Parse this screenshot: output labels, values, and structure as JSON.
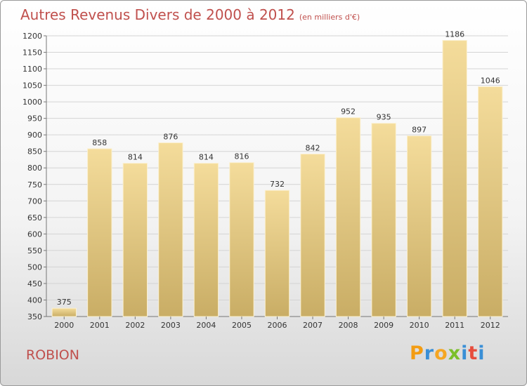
{
  "title": "Autres Revenus Divers de 2000 à 2012",
  "unit": "(en milliers d'€)",
  "place": "ROBION",
  "logo": {
    "letters": [
      "P",
      "r",
      "o",
      "x",
      "i",
      "t",
      "i"
    ],
    "colors": [
      "#f39c12",
      "#3a8fd6",
      "#f5a623",
      "#7bbf2a",
      "#3a8fd6",
      "#e74c3c",
      "#3a8fd6"
    ]
  },
  "colors": {
    "title": "#c0504d",
    "bar_light": "#f4dc9b",
    "bar_dark": "#c9ad65"
  },
  "chart_data": {
    "type": "bar",
    "categories": [
      "2000",
      "2001",
      "2002",
      "2003",
      "2004",
      "2005",
      "2006",
      "2007",
      "2008",
      "2009",
      "2010",
      "2011",
      "2012"
    ],
    "values": [
      375,
      858,
      814,
      876,
      814,
      816,
      732,
      842,
      952,
      935,
      897,
      1186,
      1046
    ],
    "ylim": [
      350,
      1200
    ],
    "yticks": [
      350,
      400,
      450,
      500,
      550,
      600,
      650,
      700,
      750,
      800,
      850,
      900,
      950,
      1000,
      1050,
      1100,
      1150,
      1200
    ],
    "grid": true
  }
}
